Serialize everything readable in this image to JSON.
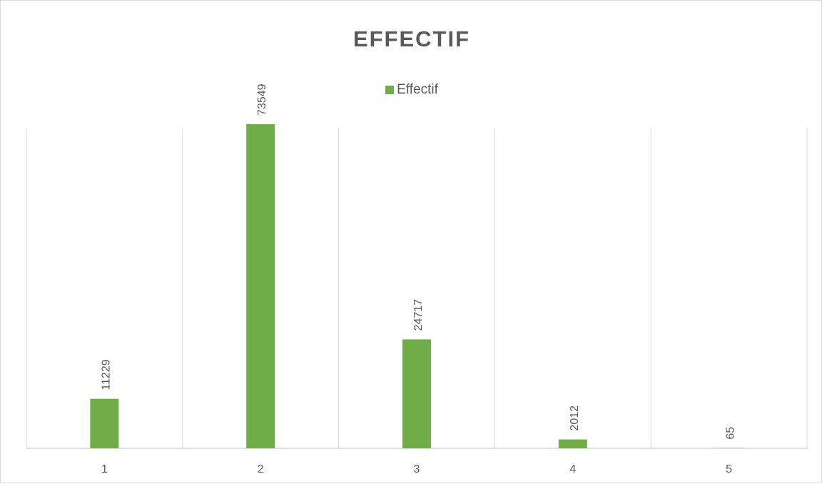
{
  "chart_data": {
    "type": "bar",
    "title": "EFFECTIF",
    "xlabel": "",
    "ylabel": "",
    "categories": [
      "1",
      "2",
      "3",
      "4",
      "5"
    ],
    "series": [
      {
        "name": "Effectif",
        "values": [
          11229,
          73549,
          24717,
          2012,
          65
        ]
      }
    ],
    "data_labels": [
      "11229",
      "73549",
      "24717",
      "2012",
      "65"
    ],
    "ylim": [
      0,
      80000
    ],
    "grid": "vertical category separators",
    "legend_position": "top",
    "bar_color": "#70ad47"
  }
}
